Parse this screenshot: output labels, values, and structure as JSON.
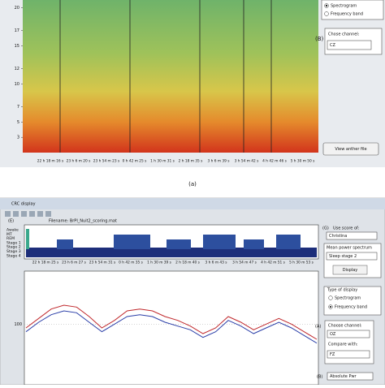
{
  "spectrogram_window": {
    "yticks": [
      20,
      17,
      15,
      12,
      10,
      7,
      5,
      3
    ],
    "ylim": [
      1,
      21
    ],
    "xticks": [
      "22 h 18 m 16 s",
      "23 h 6 m 20 s",
      "23 h 54 m 23 s",
      "0 h 42 m 25 s",
      "1 h 30 m 31 s",
      "2 h 18 m 35 s",
      "3 h 6 m 39 s",
      "3 h 54 m 42 s",
      "4 h 42 m 46 s",
      "5 h 30 m 50 s"
    ],
    "radio_options": [
      "Spectrogram",
      "Frequency band"
    ],
    "marker": "(B)",
    "channel_label": "Chose channel:",
    "channel": "CZ",
    "button": "View anther file",
    "caption": "(a)"
  },
  "crc_window": {
    "title": "CRC display",
    "marker_e": "(E)",
    "filename": "Filename: BrPI_Nuit2_scoring.mat",
    "stages": [
      "Awake",
      "MT",
      "REM",
      "Stage 1",
      "Stage 2",
      "Stage 3",
      "Stage 4"
    ],
    "hypnogram_xticks": [
      "22 h 18 m 25 s",
      "23 h 6 m 27 s",
      "23 h 54 m 31 s",
      "0 h 42 m 35 s",
      "1 h 30 m 39 s",
      "2 h 18 m 40 s",
      "3 h 6 m 43 s",
      "3 h 54 m 47 s",
      "4 h 42 m 51 s",
      "5 h 30 m 53 s"
    ],
    "marker_g": "(G)",
    "score_label": "Use score of:",
    "score": "Christina",
    "mean_label": "Mean power spectrum",
    "mean": "Sleep stage 2",
    "button": "Display",
    "display_label": "Type of display",
    "radio_options": [
      "Spectrogram",
      "Frequency band"
    ],
    "marker_a": "(A)",
    "channel_label": "Choose channel:",
    "channel": "OZ",
    "compare_label": "Compare with:",
    "compare": "FZ",
    "marker_b": "(B)",
    "power": "Absolute Pwr",
    "plot": {
      "ylim": [
        68,
        128
      ],
      "yticks": [
        100
      ],
      "series": [
        {
          "color": "#c0282c",
          "values": [
            98,
            103,
            108,
            110,
            109,
            104,
            98,
            102,
            107,
            108,
            107,
            104,
            102,
            99,
            95,
            98,
            104,
            101,
            97,
            100,
            103,
            100,
            96,
            92
          ]
        },
        {
          "color": "#2b3fa8",
          "values": [
            96,
            101,
            105,
            107,
            106,
            101,
            96,
            100,
            104,
            105,
            104,
            101,
            99,
            97,
            93,
            96,
            102,
            99,
            95,
            98,
            101,
            98,
            94,
            90
          ]
        }
      ]
    }
  }
}
